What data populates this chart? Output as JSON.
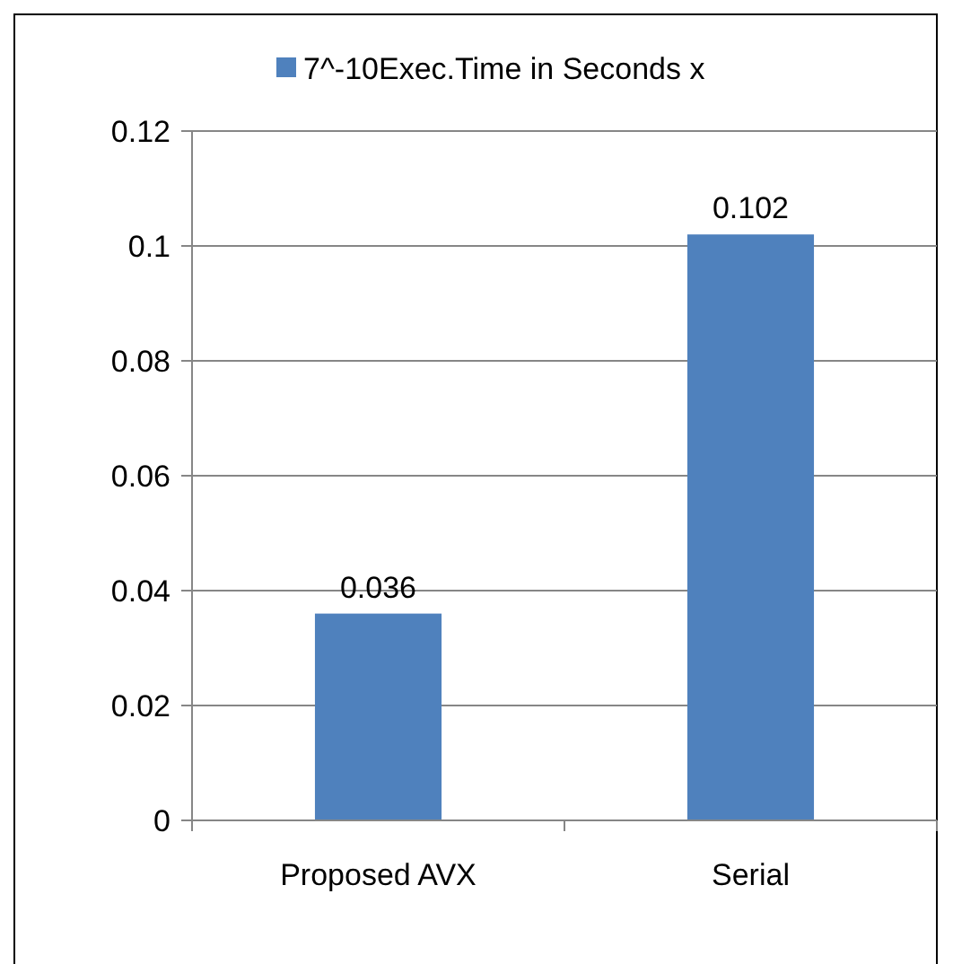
{
  "chart_data": {
    "type": "bar",
    "categories": [
      "Proposed AVX",
      "Serial"
    ],
    "series": [
      {
        "name": "7^-10Exec.Time in Seconds x",
        "color": "#4f81bd",
        "values": [
          0.036,
          0.102
        ]
      }
    ],
    "ylim": [
      0,
      0.12
    ],
    "yticks": [
      0,
      0.02,
      0.04,
      0.06,
      0.08,
      0.1,
      0.12
    ],
    "grid": "y",
    "legend": "top",
    "data_labels": true
  }
}
